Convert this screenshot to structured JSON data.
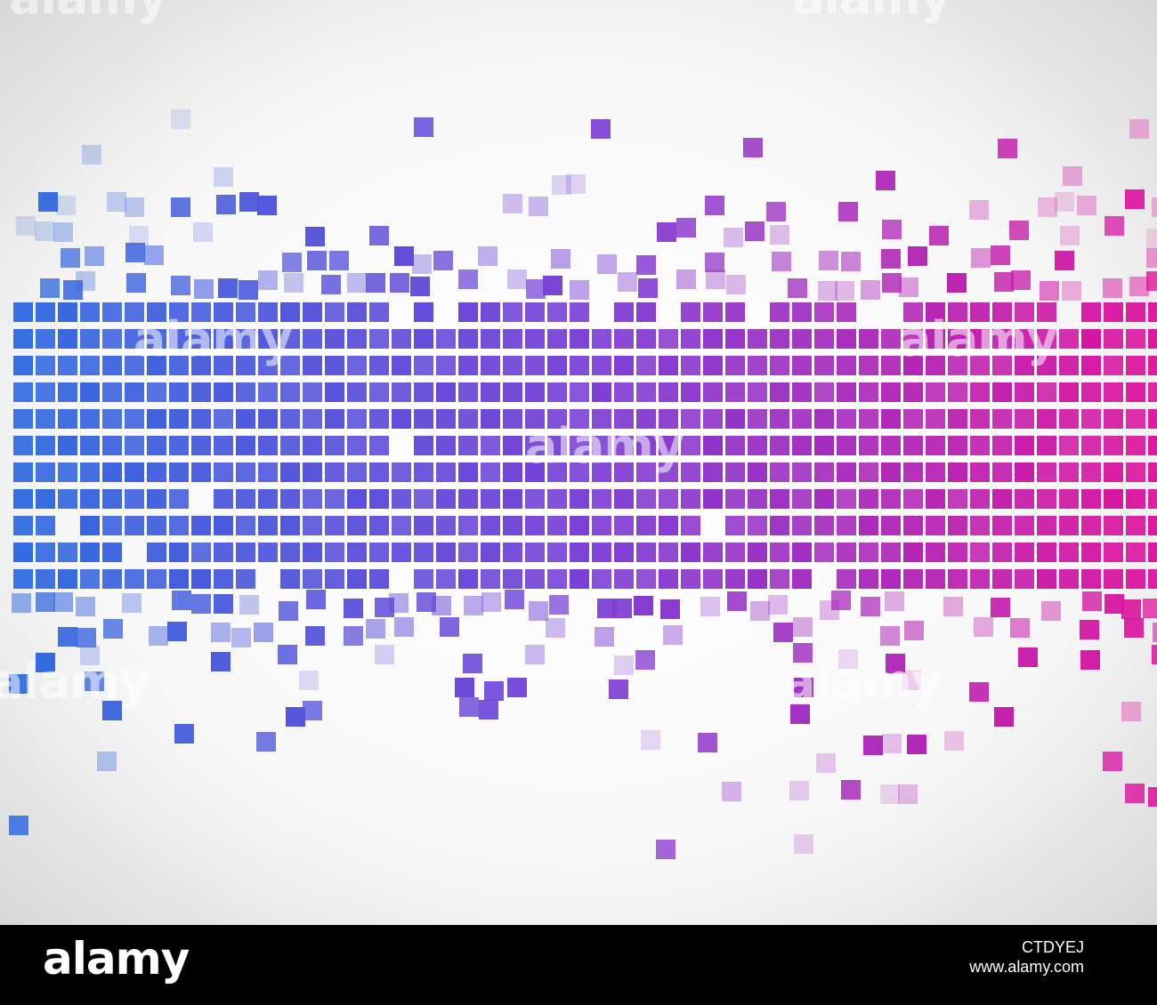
{
  "watermark": {
    "text": "alamy"
  },
  "footer": {
    "logo": "alamy",
    "image_id": "CTDYEJ",
    "url": "www.alamy.com"
  },
  "colors": {
    "background_center": "#ffffff",
    "background_edge": "#d4d4d4",
    "gradient_left": "#2e6be0",
    "gradient_mid": "#7a3ed6",
    "gradient_right": "#e0119b",
    "footer_background": "#000000",
    "footer_text": "#ffffff"
  }
}
